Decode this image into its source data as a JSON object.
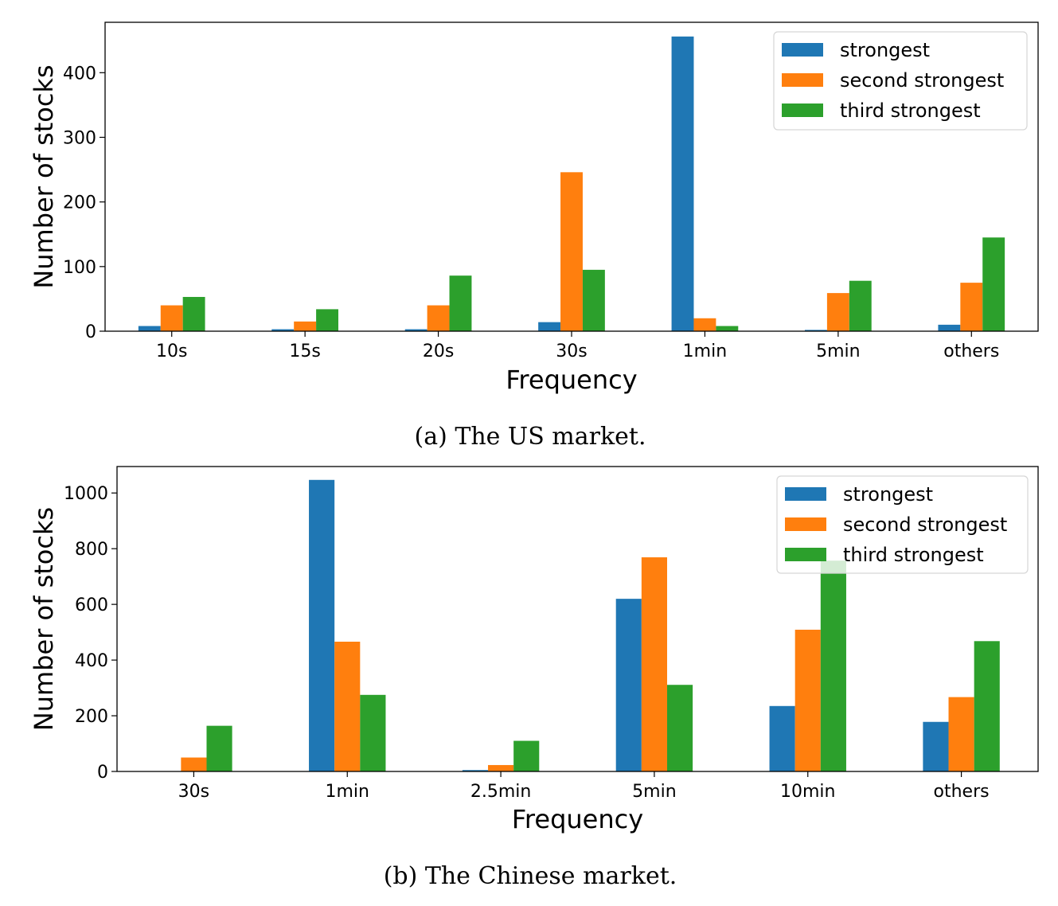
{
  "chart_data": [
    {
      "type": "bar",
      "title": "",
      "caption": "(a) The US market.",
      "xlabel": "Frequency",
      "ylabel": "Number of stocks",
      "categories": [
        "10s",
        "15s",
        "20s",
        "30s",
        "1min",
        "5min",
        "others"
      ],
      "ylim": [
        0,
        478
      ],
      "yticks": [
        0,
        100,
        200,
        300,
        400
      ],
      "grid": false,
      "legend_position": "top-right",
      "series": [
        {
          "name": "strongest",
          "color": "#1f77b4",
          "values": [
            8,
            3,
            3,
            14,
            456,
            2,
            10
          ]
        },
        {
          "name": "second strongest",
          "color": "#ff7f0e",
          "values": [
            40,
            15,
            40,
            246,
            20,
            59,
            75
          ]
        },
        {
          "name": "third strongest",
          "color": "#2ca02c",
          "values": [
            53,
            34,
            86,
            95,
            8,
            78,
            145
          ]
        }
      ]
    },
    {
      "type": "bar",
      "title": "",
      "caption": "(b) The Chinese market.",
      "xlabel": "Frequency",
      "ylabel": "Number of stocks",
      "categories": [
        "30s",
        "1min",
        "2.5min",
        "5min",
        "10min",
        "others"
      ],
      "ylim": [
        0,
        1095
      ],
      "yticks": [
        0,
        200,
        400,
        600,
        800,
        1000
      ],
      "grid": false,
      "legend_position": "top-right",
      "series": [
        {
          "name": "strongest",
          "color": "#1f77b4",
          "values": [
            0,
            1047,
            5,
            620,
            235,
            178
          ]
        },
        {
          "name": "second strongest",
          "color": "#ff7f0e",
          "values": [
            50,
            466,
            23,
            769,
            509,
            267
          ]
        },
        {
          "name": "third strongest",
          "color": "#2ca02c",
          "values": [
            164,
            275,
            110,
            311,
            757,
            468
          ]
        }
      ]
    }
  ]
}
